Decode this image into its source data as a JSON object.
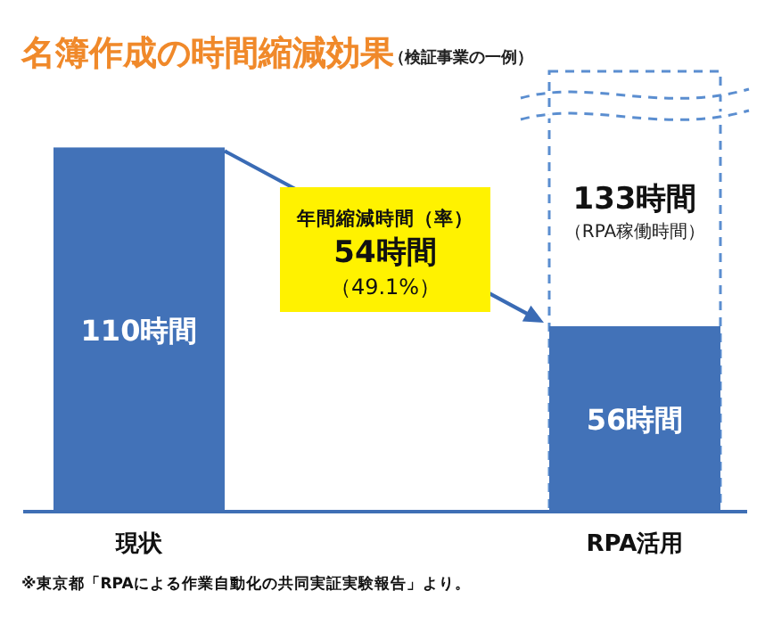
{
  "chart_data": {
    "type": "bar",
    "title": "名簿作成の時間縮減効果",
    "subtitle": "（検証事業の一例）",
    "categories": [
      "現状",
      "RPA活用"
    ],
    "series": [
      {
        "name": "（RPA稼働時間）",
        "color": "#5b8ed0",
        "line_style": "dashed",
        "values": [
          null,
          133
        ],
        "value_labels": [
          null,
          "133時間"
        ]
      },
      {
        "color": "#4272b8",
        "values": [
          110,
          56
        ],
        "value_labels": [
          "110時間",
          "56時間"
        ]
      }
    ],
    "annotations": [
      "年間縮減時間（率）",
      "54時間",
      "（49.1%）",
      "※東京都「RPAによる作業自動化の共同実証実験報告」より。"
    ]
  }
}
